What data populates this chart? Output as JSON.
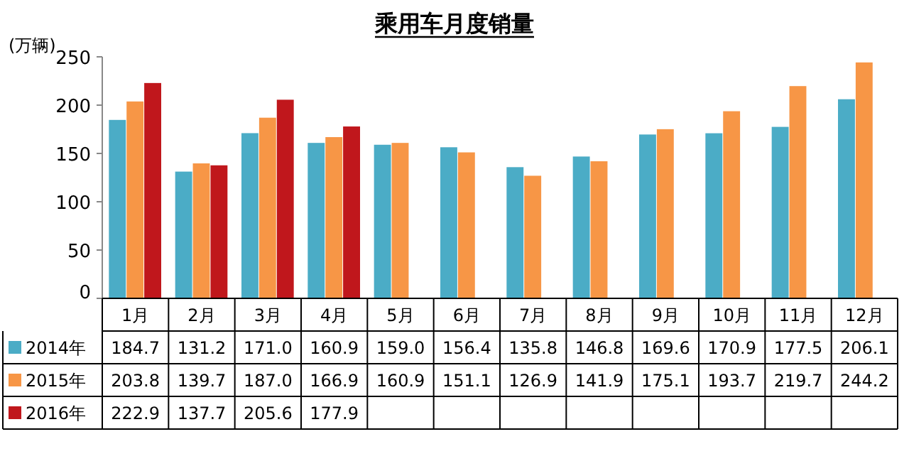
{
  "chart_data": {
    "type": "bar",
    "title": "乘用车月度销量",
    "ylabel": "(万辆)",
    "categories": [
      "1月",
      "2月",
      "3月",
      "4月",
      "5月",
      "6月",
      "7月",
      "8月",
      "9月",
      "10月",
      "11月",
      "12月"
    ],
    "series": [
      {
        "name": "2014年",
        "color": "#4bacc6",
        "values": [
          184.7,
          131.2,
          171.0,
          160.9,
          159.0,
          156.4,
          135.8,
          146.8,
          169.6,
          170.9,
          177.5,
          206.1
        ],
        "value_labels": [
          "184.7",
          "131.2",
          "171.0",
          "160.9",
          "159.0",
          "156.4",
          "135.8",
          "146.8",
          "169.6",
          "170.9",
          "177.5",
          "206.1"
        ]
      },
      {
        "name": "2015年",
        "color": "#f79646",
        "values": [
          203.8,
          139.7,
          187.0,
          166.9,
          160.9,
          151.1,
          126.9,
          141.9,
          175.1,
          193.7,
          219.7,
          244.2
        ],
        "value_labels": [
          "203.8",
          "139.7",
          "187.0",
          "166.9",
          "160.9",
          "151.1",
          "126.9",
          "141.9",
          "175.1",
          "193.7",
          "219.7",
          "244.2"
        ]
      },
      {
        "name": "2016年",
        "color": "#c0171c",
        "values": [
          222.9,
          137.7,
          205.6,
          177.9,
          null,
          null,
          null,
          null,
          null,
          null,
          null,
          null
        ],
        "value_labels": [
          "222.9",
          "137.7",
          "205.6",
          "177.9",
          null,
          null,
          null,
          null,
          null,
          null,
          null,
          null
        ]
      }
    ],
    "ylim": [
      0,
      250
    ],
    "yticks": [
      0,
      50,
      100,
      150,
      200,
      250
    ],
    "legend": "bottom"
  }
}
